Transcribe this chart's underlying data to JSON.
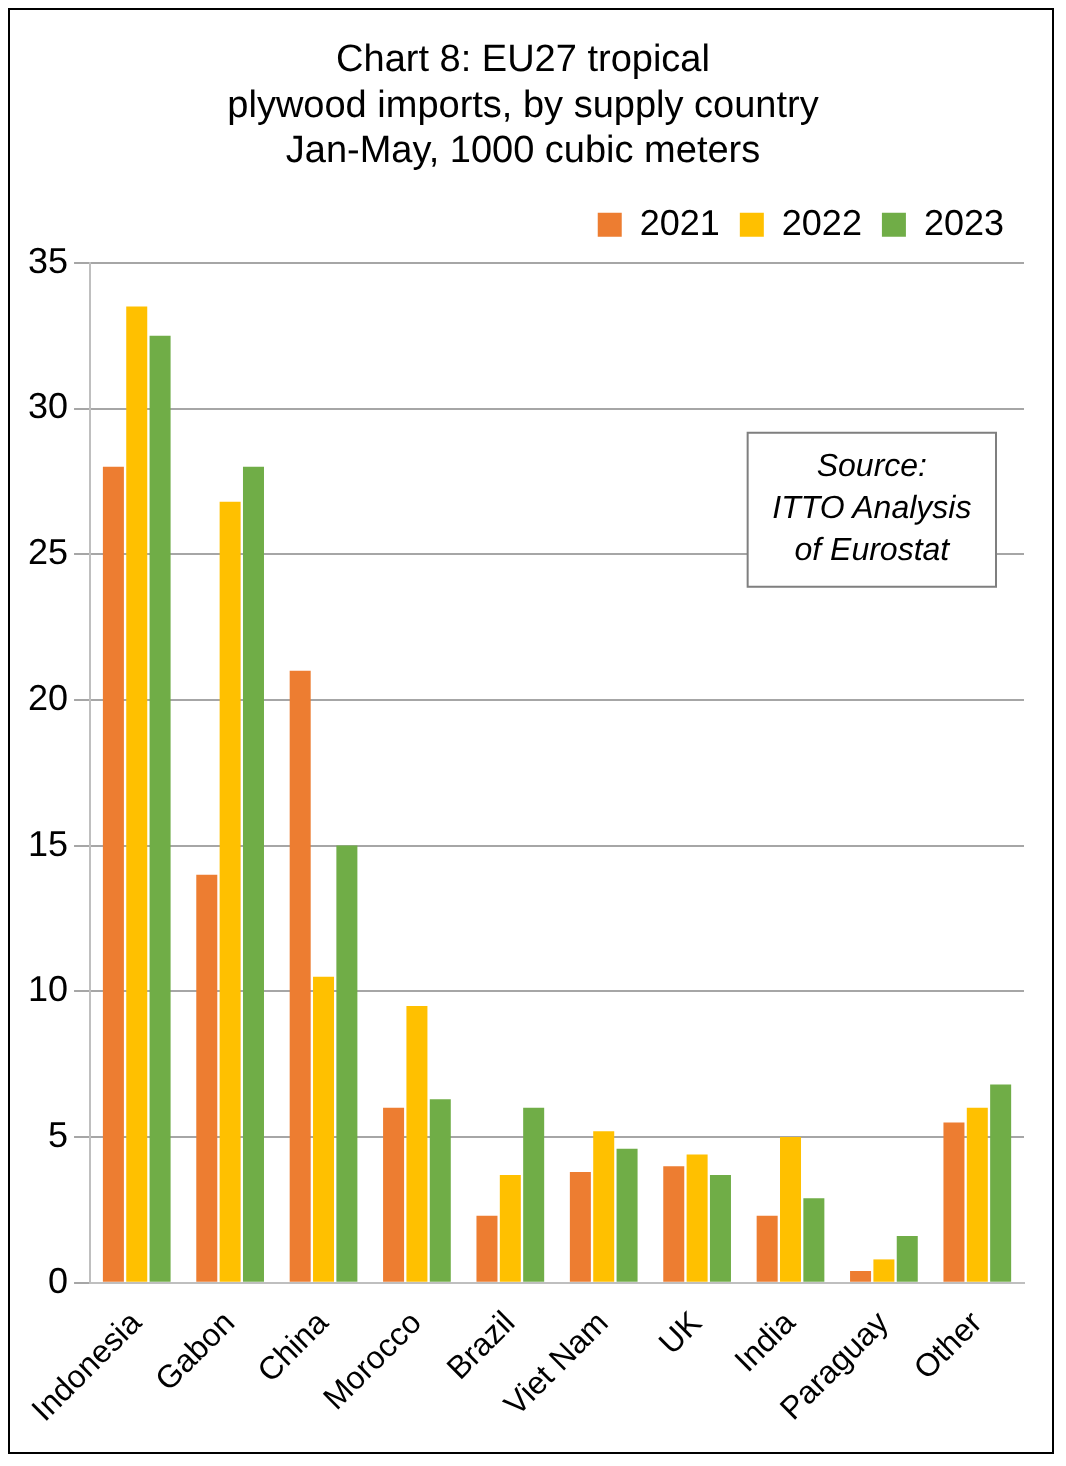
{
  "chart_data": {
    "type": "bar",
    "title": "Chart 8: EU27 tropical\nplywood imports, by supply country\nJan-May, 1000 cubic meters",
    "categories": [
      "Indonesia",
      "Gabon",
      "China",
      "Morocco",
      "Brazil",
      "Viet Nam",
      "UK",
      "India",
      "Paraguay",
      "Other"
    ],
    "series": [
      {
        "name": "2021",
        "color": "#ed7d31",
        "values": [
          28,
          14,
          21,
          6,
          2.3,
          3.8,
          4,
          2.3,
          0.4,
          5.5
        ]
      },
      {
        "name": "2022",
        "color": "#ffc000",
        "values": [
          33.5,
          26.8,
          10.5,
          9.5,
          3.7,
          5.2,
          4.4,
          5,
          0.8,
          6
        ]
      },
      {
        "name": "2023",
        "color": "#70ad47",
        "values": [
          32.5,
          28,
          15,
          6.3,
          6,
          4.6,
          3.7,
          2.9,
          1.6,
          6.8
        ]
      }
    ],
    "ylim": [
      0,
      35
    ],
    "yticks": [
      0,
      5,
      10,
      15,
      20,
      25,
      30,
      35
    ],
    "grid": "y",
    "legend": "top right",
    "annotations": [
      "Source:\nITTO Analysis\nof Eurostat"
    ]
  }
}
